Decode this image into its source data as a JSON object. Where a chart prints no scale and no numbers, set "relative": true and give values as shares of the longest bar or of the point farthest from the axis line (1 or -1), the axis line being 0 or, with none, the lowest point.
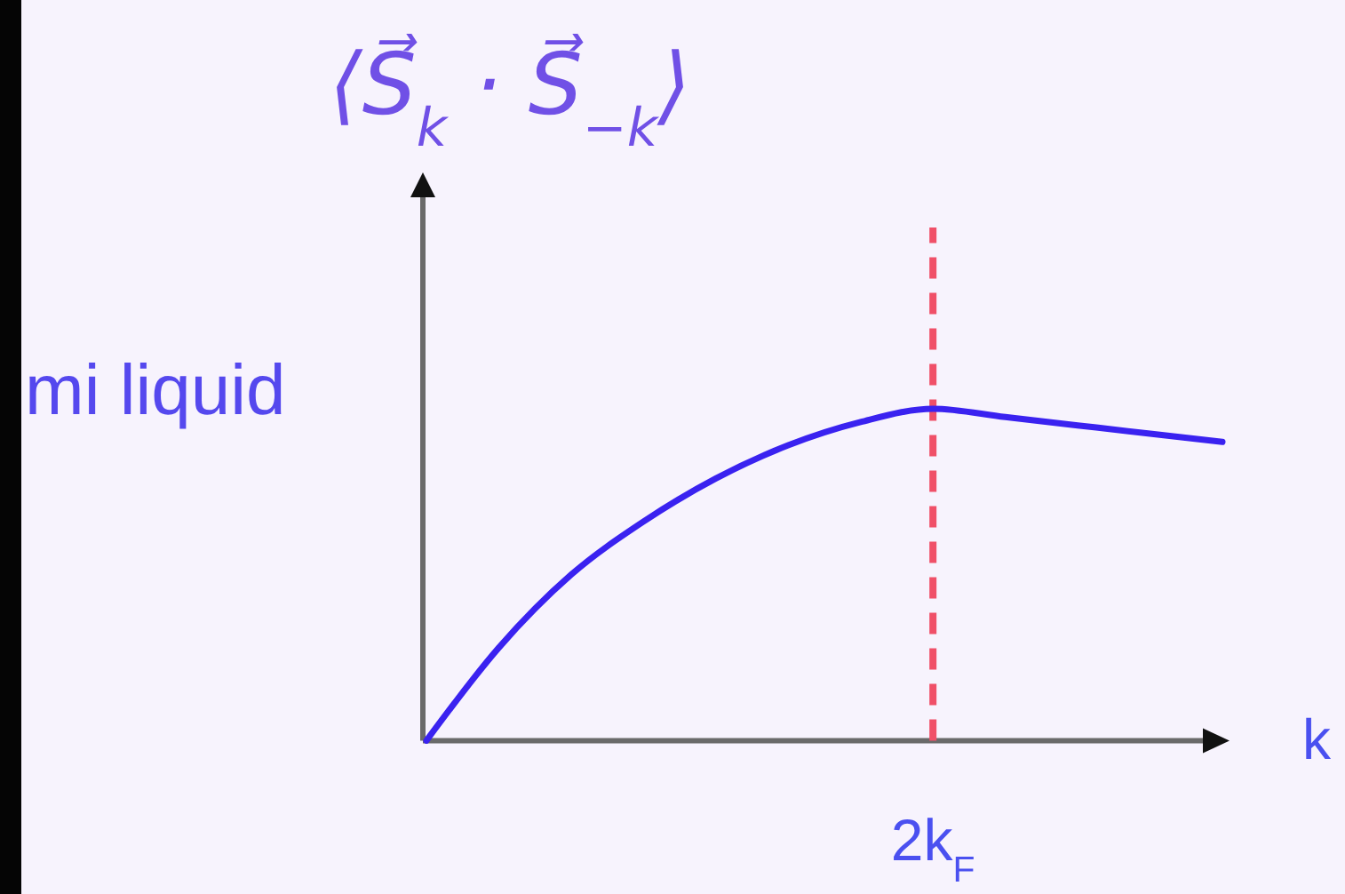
{
  "chart_data": {
    "type": "line",
    "ylabel": "⟨S⃗$_{k}$ · S⃗$_{−k}$⟩",
    "xlabel": "k",
    "annotations": [
      "mi liquid"
    ],
    "relative": true,
    "categories": [
      null,
      null,
      null,
      null,
      null,
      null,
      null,
      null,
      null,
      null,
      null,
      null
    ],
    "series": [
      {
        "color": "#3a22f0",
        "values": [
          0,
          0.28,
          0.5,
          0.66,
          0.79,
          0.89,
          0.96,
          1,
          0.975,
          0.95,
          0.925,
          0.9
        ]
      }
    ],
    "ref_lines": [
      {
        "axis": "x",
        "label": "2k$_{F}$",
        "color": "#f05068",
        "line_style": "dashed"
      }
    ]
  }
}
